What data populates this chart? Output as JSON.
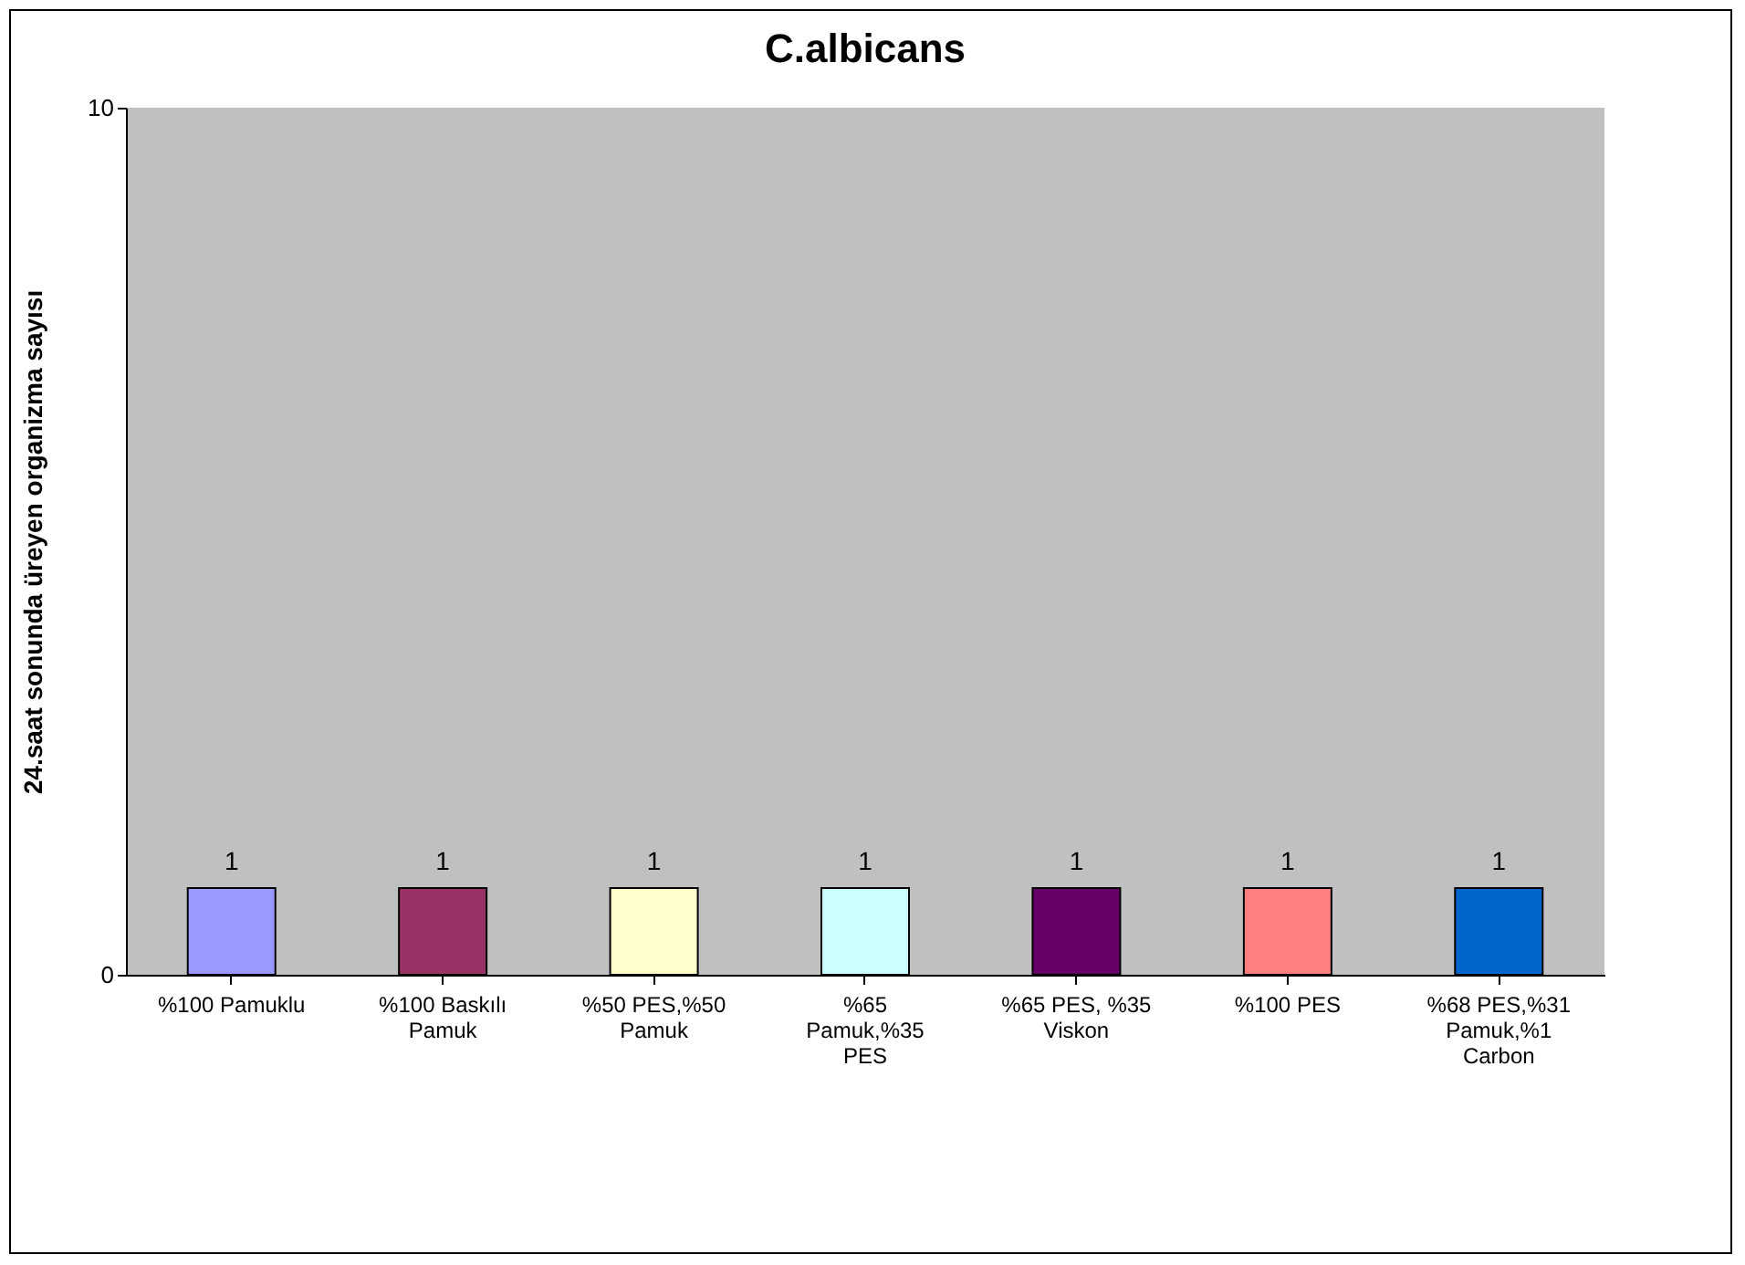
{
  "chart_data": {
    "type": "bar",
    "title": "C.albicans",
    "ylabel": "24.saat sonunda üreyen organizma sayısı",
    "categories": [
      "%100 Pamuklu",
      "%100 Baskılı Pamuk",
      "%50 PES,%50 Pamuk",
      "%65 Pamuk,%35 PES",
      "%65 PES, %35 Viskon",
      "%100 PES",
      "%68 PES,%31 Pamuk,%1 Carbon"
    ],
    "values": [
      1,
      1,
      1,
      1,
      1,
      1,
      1
    ],
    "colors": [
      "#9999ff",
      "#993366",
      "#ffffcc",
      "#ccffff",
      "#660066",
      "#ff8080",
      "#0066cc"
    ],
    "ylim": [
      0,
      10
    ],
    "yticks": [
      0,
      10
    ],
    "grid": false,
    "data_labels": true
  }
}
